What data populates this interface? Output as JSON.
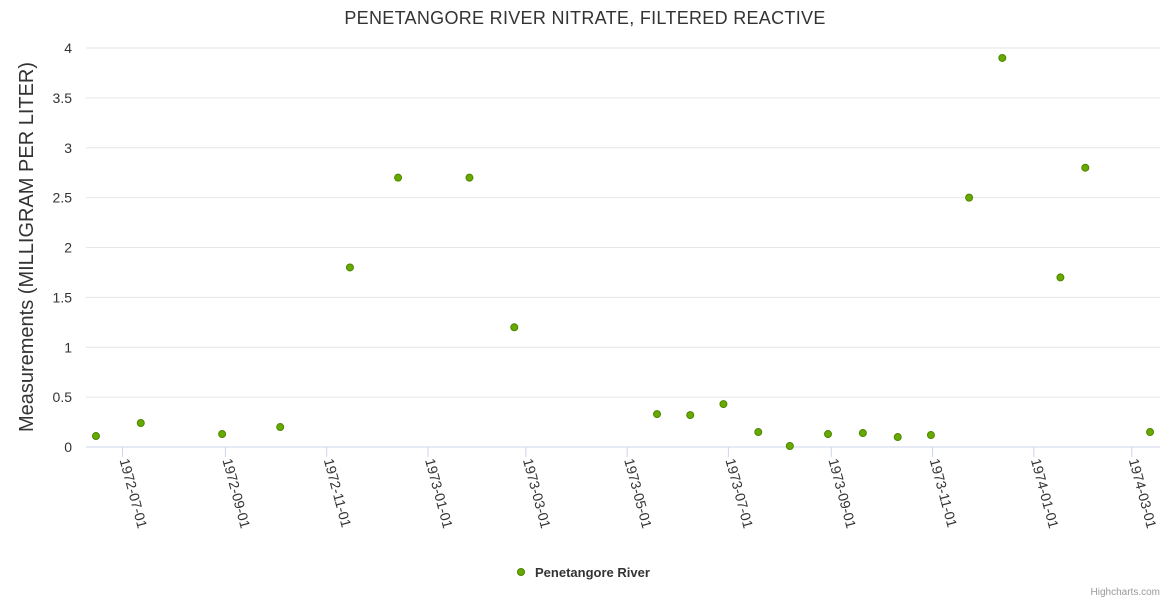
{
  "chart_data": {
    "type": "scatter",
    "title": "PENETANGORE RIVER NITRATE, FILTERED REACTIVE",
    "ylabel": "Measurements (MILLIGRAM PER LITER)",
    "xlabel": "",
    "ylim": [
      0,
      4
    ],
    "xlim": [
      "1972-06-09",
      "1974-03-18"
    ],
    "yticks": [
      "0",
      "0.5",
      "1",
      "1.5",
      "2",
      "2.5",
      "3",
      "3.5",
      "4"
    ],
    "xticks": [
      "1972-07-01",
      "1972-09-01",
      "1972-11-01",
      "1973-01-01",
      "1973-03-01",
      "1973-05-01",
      "1973-07-01",
      "1973-09-01",
      "1973-11-01",
      "1974-01-01",
      "1974-03-01"
    ],
    "grid": true,
    "legend_position": "bottom-center",
    "marker_color": "#66aa00",
    "marker_stroke": "#4d8500",
    "series": [
      {
        "name": "Penetangore River",
        "points": [
          {
            "x": "1972-06-15",
            "y": 0.11
          },
          {
            "x": "1972-07-12",
            "y": 0.24
          },
          {
            "x": "1972-08-30",
            "y": 0.13
          },
          {
            "x": "1972-10-04",
            "y": 0.2
          },
          {
            "x": "1972-11-15",
            "y": 1.8
          },
          {
            "x": "1972-12-14",
            "y": 2.7
          },
          {
            "x": "1973-01-26",
            "y": 2.7
          },
          {
            "x": "1973-02-22",
            "y": 1.2
          },
          {
            "x": "1973-05-19",
            "y": 0.33
          },
          {
            "x": "1973-06-08",
            "y": 0.32
          },
          {
            "x": "1973-06-28",
            "y": 0.43
          },
          {
            "x": "1973-07-19",
            "y": 0.15
          },
          {
            "x": "1973-08-07",
            "y": 0.01
          },
          {
            "x": "1973-08-30",
            "y": 0.13
          },
          {
            "x": "1973-09-20",
            "y": 0.14
          },
          {
            "x": "1973-10-11",
            "y": 0.1
          },
          {
            "x": "1973-10-31",
            "y": 0.12
          },
          {
            "x": "1973-11-23",
            "y": 2.5
          },
          {
            "x": "1973-12-13",
            "y": 3.9
          },
          {
            "x": "1974-01-17",
            "y": 1.7
          },
          {
            "x": "1974-02-01",
            "y": 2.8
          },
          {
            "x": "1974-03-12",
            "y": 0.15
          }
        ]
      }
    ],
    "credits": "Highcharts.com"
  }
}
